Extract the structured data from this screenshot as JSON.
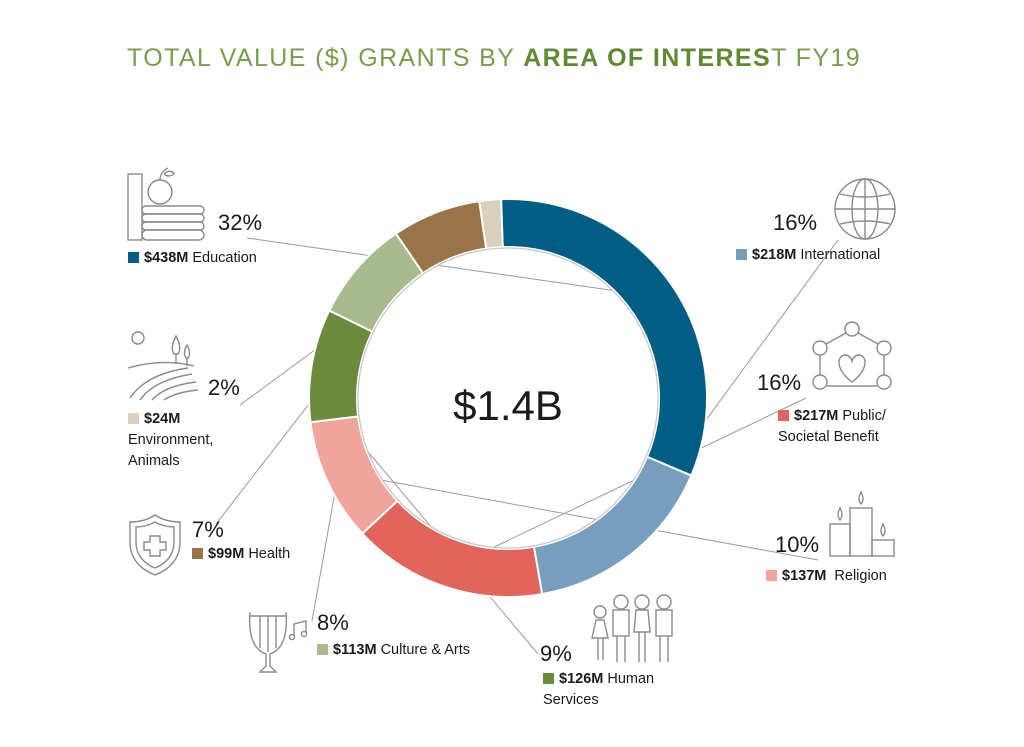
{
  "title": {
    "pre": "TOTAL VALUE ($) GRANTS BY ",
    "bold": "AREA OF INTERES",
    "post": "T FY19"
  },
  "chart_data": {
    "type": "pie",
    "variant": "donut",
    "center_label": "$1.4B",
    "slices": [
      {
        "key": "education",
        "label": "Education",
        "amount": "$438M",
        "percent": "32%",
        "value": 438,
        "color": "#005e85"
      },
      {
        "key": "international",
        "label": "International",
        "amount": "$218M",
        "percent": "16%",
        "value": 218,
        "color": "#779fbd"
      },
      {
        "key": "public",
        "label": "Public/ Societal Benefit",
        "label_lines": [
          "Public/",
          "Societal Benefit"
        ],
        "amount": "$217M",
        "percent": "16%",
        "value": 217,
        "color": "#e0645a"
      },
      {
        "key": "religion",
        "label": "Religion",
        "amount": "$137M",
        "percent": "10%",
        "value": 137,
        "color": "#f0a49b"
      },
      {
        "key": "human",
        "label": "Human Services",
        "label_lines": [
          "Human",
          "Services"
        ],
        "amount": "$126M",
        "percent": "9%",
        "value": 126,
        "color": "#6a8a3c"
      },
      {
        "key": "culture",
        "label": "Culture & Arts",
        "amount": "$113M",
        "percent": "8%",
        "value": 113,
        "color": "#a9ba8f"
      },
      {
        "key": "health",
        "label": "Health",
        "amount": "$99M",
        "percent": "7%",
        "value": 99,
        "color": "#9a7449"
      },
      {
        "key": "environment",
        "label": "Environment, Animals",
        "label_lines": [
          "Environment,",
          "Animals"
        ],
        "amount": "$24M",
        "percent": "2%",
        "value": 24,
        "color": "#d9cfbb"
      }
    ]
  },
  "icons": {
    "education": "books-apple-icon",
    "international": "globe-icon",
    "public": "heart-network-icon",
    "religion": "candles-icon",
    "human": "family-icon",
    "culture": "lyre-icon",
    "health": "shield-cross-icon",
    "environment": "field-trees-icon"
  }
}
